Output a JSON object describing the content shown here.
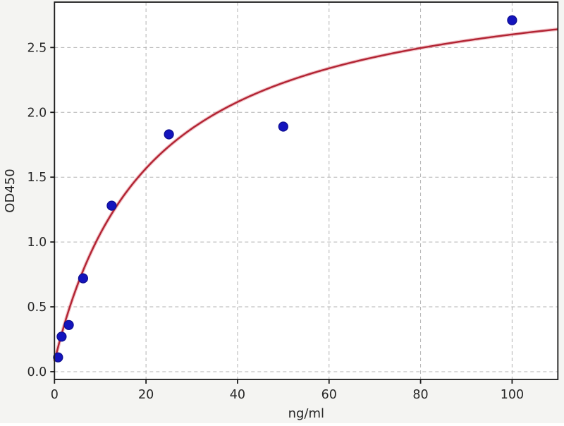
{
  "chart_data": {
    "type": "scatter",
    "title": "",
    "xlabel": "ng/ml",
    "ylabel": "OD450",
    "xlim": [
      0,
      110
    ],
    "ylim": [
      -0.06,
      2.85
    ],
    "grid": true,
    "grid_style": "dashed",
    "legend": "none",
    "xticks": {
      "values": [
        0,
        20,
        40,
        60,
        80,
        100
      ],
      "labels": [
        "0",
        "20",
        "40",
        "60",
        "80",
        "100"
      ]
    },
    "yticks": {
      "values": [
        0.0,
        0.5,
        1.0,
        1.5,
        2.0,
        2.5
      ],
      "labels": [
        "0.0",
        "0.5",
        "1.0",
        "1.5",
        "2.0",
        "2.5"
      ]
    },
    "series": [
      {
        "name": "standard-points",
        "type": "scatter",
        "marker": "circle",
        "points": [
          {
            "x": 0.78,
            "od": 0.11
          },
          {
            "x": 1.56,
            "od": 0.27
          },
          {
            "x": 3.125,
            "od": 0.36
          },
          {
            "x": 6.25,
            "od": 0.72
          },
          {
            "x": 12.5,
            "od": 1.28
          },
          {
            "x": 25,
            "od": 1.83
          },
          {
            "x": 50,
            "od": 1.89
          },
          {
            "x": 100,
            "od": 2.71
          }
        ]
      },
      {
        "name": "fit-curve",
        "type": "line",
        "model": "saturation",
        "formula": "od = y0 + a*x/(x+k)",
        "y0": 0.08,
        "a": 3.05,
        "k": 21,
        "x_range": [
          0,
          110
        ]
      }
    ],
    "colors": {
      "point_fill": "#1414bd",
      "point_edge": "#0d0d8e",
      "curve": "#b22433",
      "curve_halo": "#dd6975",
      "grid": "#b3b3b3",
      "spine": "#1a1a1a",
      "plot_bg": "#ffffff",
      "figure_bg": "#f4f4f2",
      "text": "#262626"
    }
  }
}
